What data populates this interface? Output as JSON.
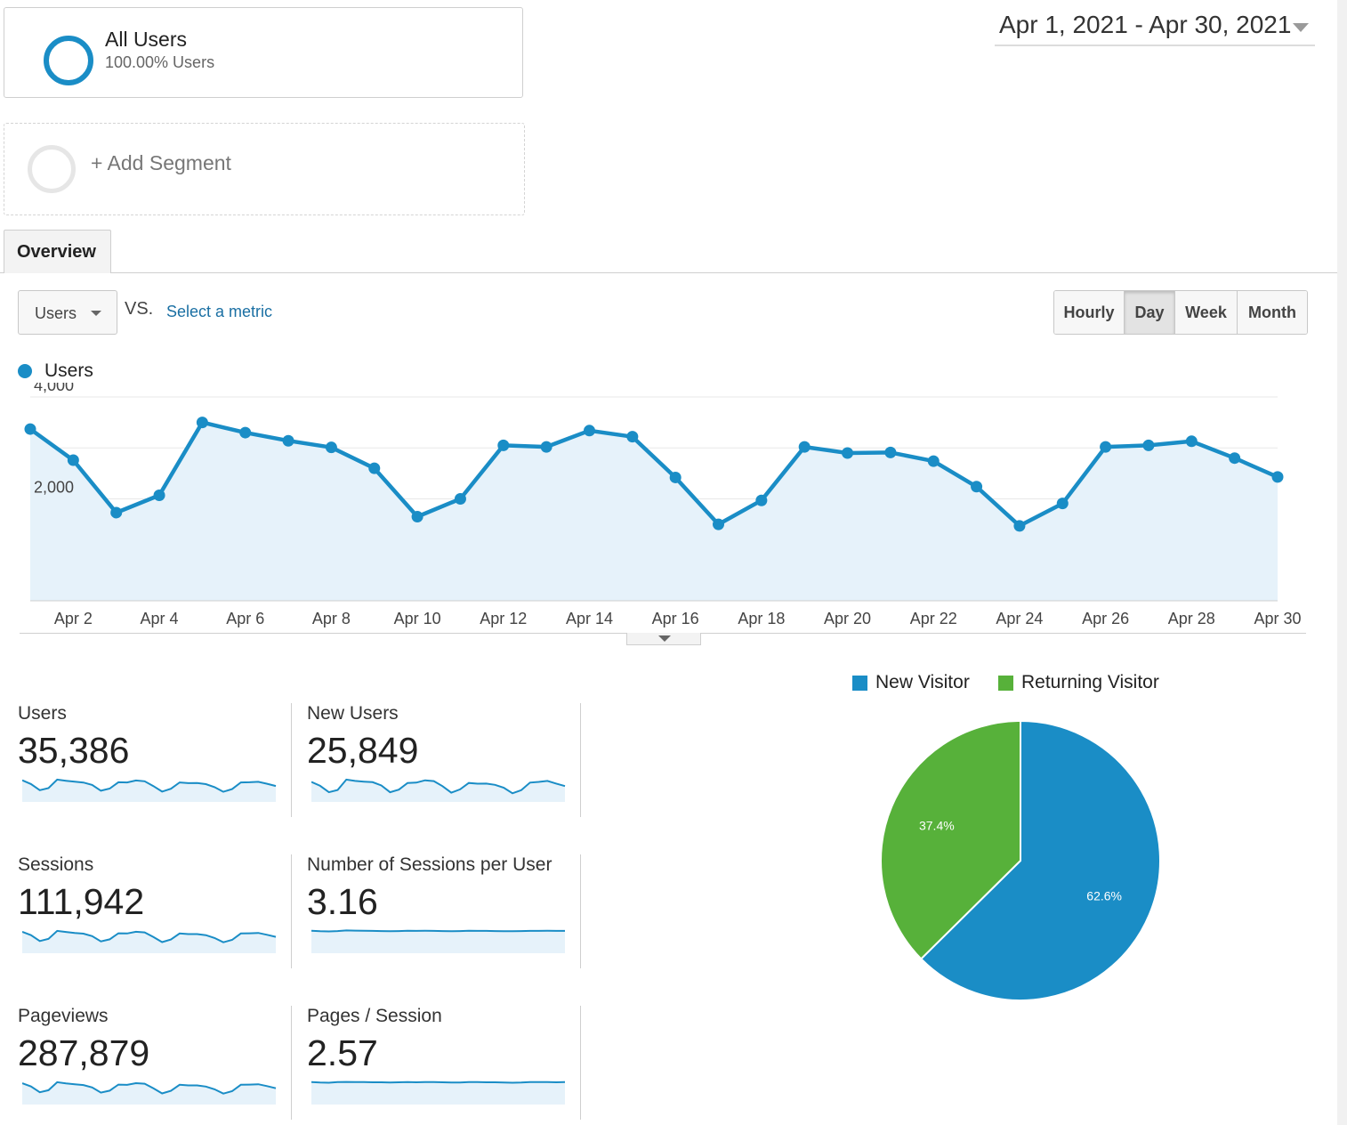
{
  "segments": {
    "active": {
      "title": "All Users",
      "subtitle": "100.00% Users"
    },
    "add_label": "+ Add Segment"
  },
  "date_range": "Apr 1, 2021 - Apr 30, 2021",
  "tabs": [
    "Overview"
  ],
  "metric_selector": {
    "selected": "Users",
    "vs": "VS.",
    "select_metric": "Select a metric"
  },
  "granularity": {
    "options": [
      "Hourly",
      "Day",
      "Week",
      "Month"
    ],
    "active": "Day"
  },
  "colors": {
    "accent": "#1a8dc6",
    "returning": "#57b13a",
    "area": "#e6f2fa"
  },
  "chart_data": [
    {
      "type": "area",
      "series": [
        {
          "name": "Users",
          "x": [
            "Apr 1",
            "Apr 2",
            "Apr 3",
            "Apr 4",
            "Apr 5",
            "Apr 6",
            "Apr 7",
            "Apr 8",
            "Apr 9",
            "Apr 10",
            "Apr 11",
            "Apr 12",
            "Apr 13",
            "Apr 14",
            "Apr 15",
            "Apr 16",
            "Apr 17",
            "Apr 18",
            "Apr 19",
            "Apr 20",
            "Apr 21",
            "Apr 22",
            "Apr 23",
            "Apr 24",
            "Apr 25",
            "Apr 26",
            "Apr 27",
            "Apr 28",
            "Apr 29",
            "Apr 30"
          ],
          "values": [
            3370,
            2760,
            1730,
            2070,
            3500,
            3300,
            3140,
            3010,
            2600,
            1650,
            2000,
            3050,
            3020,
            3340,
            3220,
            2420,
            1500,
            1970,
            3020,
            2900,
            2910,
            2740,
            2240,
            1470,
            1910,
            3020,
            3050,
            3130,
            2800,
            2430
          ]
        }
      ],
      "x_tick_labels": [
        "Apr 2",
        "Apr 4",
        "Apr 6",
        "Apr 8",
        "Apr 10",
        "Apr 12",
        "Apr 14",
        "Apr 16",
        "Apr 18",
        "Apr 20",
        "Apr 22",
        "Apr 24",
        "Apr 26",
        "Apr 28",
        "Apr 30"
      ],
      "y_tick_labels": [
        "4,000",
        "2,000"
      ],
      "ylim": [
        0,
        4000
      ],
      "grid": true,
      "legend": "top-left"
    },
    {
      "type": "pie",
      "categories": [
        "New Visitor",
        "Returning Visitor"
      ],
      "values": [
        62.6,
        37.4
      ],
      "data_labels": [
        "62.6%",
        "37.4%"
      ],
      "legend": "top"
    }
  ],
  "kpis": [
    {
      "label": "Users",
      "value": "35,386",
      "spark": [
        3370,
        2760,
        1730,
        2070,
        3500,
        3300,
        3140,
        3010,
        2600,
        1650,
        2000,
        3050,
        3020,
        3340,
        3220,
        2420,
        1500,
        1970,
        3020,
        2900,
        2910,
        2740,
        2240,
        1470,
        1910,
        3020,
        3050,
        3130,
        2800,
        2430
      ]
    },
    {
      "label": "New Users",
      "value": "25,849",
      "spark": [
        2470,
        1950,
        1100,
        1400,
        2780,
        2600,
        2500,
        2430,
        2000,
        1100,
        1450,
        2330,
        2380,
        2680,
        2580,
        1900,
        1050,
        1480,
        2330,
        2230,
        2250,
        2080,
        1700,
        960,
        1380,
        2380,
        2470,
        2600,
        2250,
        1920
      ]
    },
    {
      "label": "Sessions",
      "value": "111,942",
      "spark": [
        10700,
        8900,
        5800,
        6900,
        11200,
        10600,
        10100,
        9700,
        8400,
        5600,
        6700,
        9900,
        9800,
        10700,
        10400,
        7900,
        5200,
        6600,
        9800,
        9500,
        9500,
        8900,
        7400,
        5100,
        6400,
        9800,
        9900,
        10100,
        9100,
        8000
      ]
    },
    {
      "label": "Number of Sessions per User",
      "value": "3.16",
      "spark": [
        3.18,
        3.15,
        3.14,
        3.16,
        3.2,
        3.19,
        3.18,
        3.17,
        3.16,
        3.15,
        3.16,
        3.18,
        3.17,
        3.18,
        3.17,
        3.16,
        3.15,
        3.16,
        3.18,
        3.17,
        3.17,
        3.16,
        3.15,
        3.15,
        3.16,
        3.17,
        3.17,
        3.18,
        3.17,
        3.17
      ]
    },
    {
      "label": "Pageviews",
      "value": "287,879",
      "spark": [
        27500,
        23000,
        15000,
        17800,
        28900,
        27300,
        26100,
        25000,
        21600,
        14500,
        17300,
        25600,
        25200,
        27500,
        26800,
        20400,
        13400,
        17000,
        25300,
        24500,
        24500,
        22900,
        19100,
        13200,
        16500,
        25300,
        25500,
        26000,
        23500,
        20600
      ]
    },
    {
      "label": "Pages / Session",
      "value": "2.57",
      "spark": [
        2.58,
        2.56,
        2.55,
        2.58,
        2.59,
        2.58,
        2.58,
        2.57,
        2.57,
        2.56,
        2.57,
        2.58,
        2.57,
        2.58,
        2.58,
        2.57,
        2.56,
        2.56,
        2.58,
        2.58,
        2.57,
        2.57,
        2.56,
        2.55,
        2.56,
        2.58,
        2.58,
        2.58,
        2.57,
        2.58
      ]
    }
  ]
}
